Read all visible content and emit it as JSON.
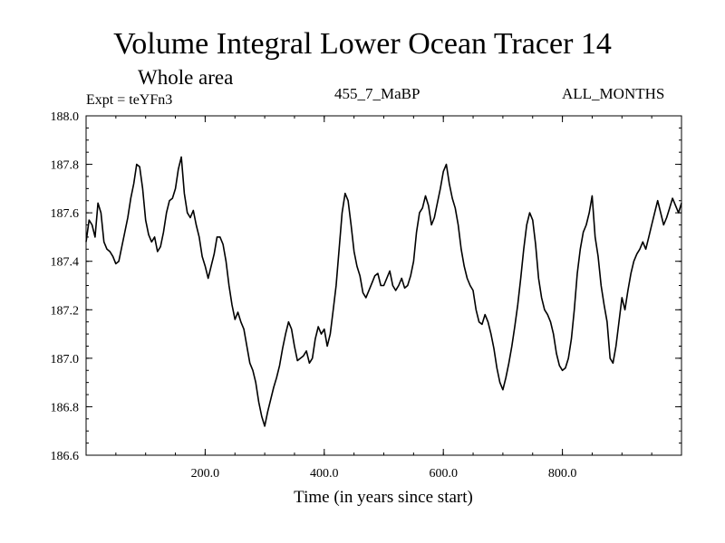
{
  "header": {
    "title": "Volume Integral Lower Ocean Tracer 14",
    "subtitle": "Whole area",
    "experiment": "Expt = teYFn3",
    "run": "455_7_MaBP",
    "months": "ALL_MONTHS"
  },
  "chart_data": {
    "type": "line",
    "title": "Volume Integral Lower Ocean Tracer 14",
    "xlabel": "Time (in years since start)",
    "ylabel": "",
    "xlim": [
      0,
      1000
    ],
    "ylim": [
      186.6,
      188.0
    ],
    "xticks": [
      200,
      400,
      600,
      800
    ],
    "xtick_labels": [
      "200.0",
      "400.0",
      "600.0",
      "800.0"
    ],
    "yticks": [
      186.6,
      186.8,
      187.0,
      187.2,
      187.4,
      187.6,
      187.8,
      188.0
    ],
    "ytick_labels": [
      "186.6",
      "186.8",
      "187.0",
      "187.2",
      "187.4",
      "187.6",
      "187.8",
      "188.0"
    ],
    "grid": false,
    "series": [
      {
        "name": "Volume Integral Lower Ocean Tracer 14",
        "x": [
          0,
          5,
          10,
          15,
          20,
          25,
          30,
          35,
          40,
          45,
          50,
          55,
          60,
          65,
          70,
          75,
          80,
          85,
          90,
          95,
          100,
          105,
          110,
          115,
          120,
          125,
          130,
          135,
          140,
          145,
          150,
          155,
          160,
          165,
          170,
          175,
          180,
          185,
          190,
          195,
          200,
          205,
          210,
          215,
          220,
          225,
          230,
          235,
          240,
          245,
          250,
          255,
          260,
          265,
          270,
          275,
          280,
          285,
          290,
          295,
          300,
          305,
          310,
          315,
          320,
          325,
          330,
          335,
          340,
          345,
          350,
          355,
          360,
          365,
          370,
          375,
          380,
          385,
          390,
          395,
          400,
          405,
          410,
          415,
          420,
          425,
          430,
          435,
          440,
          445,
          450,
          455,
          460,
          465,
          470,
          475,
          480,
          485,
          490,
          495,
          500,
          505,
          510,
          515,
          520,
          525,
          530,
          535,
          540,
          545,
          550,
          555,
          560,
          565,
          570,
          575,
          580,
          585,
          590,
          595,
          600,
          605,
          610,
          615,
          620,
          625,
          630,
          635,
          640,
          645,
          650,
          655,
          660,
          665,
          670,
          675,
          680,
          685,
          690,
          695,
          700,
          705,
          710,
          715,
          720,
          725,
          730,
          735,
          740,
          745,
          750,
          755,
          760,
          765,
          770,
          775,
          780,
          785,
          790,
          795,
          800,
          805,
          810,
          815,
          820,
          825,
          830,
          835,
          840,
          845,
          850,
          855,
          860,
          865,
          870,
          875,
          880,
          885,
          890,
          895,
          900,
          905,
          910,
          915,
          920,
          925,
          930,
          935,
          940,
          945,
          950,
          955,
          960,
          965,
          970,
          975,
          980,
          985,
          990,
          995,
          1000
        ],
        "y": [
          187.48,
          187.57,
          187.55,
          187.5,
          187.64,
          187.6,
          187.48,
          187.45,
          187.44,
          187.42,
          187.39,
          187.4,
          187.46,
          187.52,
          187.58,
          187.66,
          187.72,
          187.8,
          187.79,
          187.7,
          187.57,
          187.51,
          187.48,
          187.5,
          187.44,
          187.46,
          187.52,
          187.6,
          187.65,
          187.66,
          187.7,
          187.78,
          187.83,
          187.68,
          187.6,
          187.58,
          187.61,
          187.55,
          187.5,
          187.42,
          187.38,
          187.33,
          187.38,
          187.43,
          187.5,
          187.5,
          187.47,
          187.4,
          187.3,
          187.22,
          187.16,
          187.19,
          187.15,
          187.12,
          187.05,
          186.98,
          186.95,
          186.9,
          186.82,
          186.76,
          186.72,
          186.78,
          186.83,
          186.88,
          186.92,
          186.97,
          187.04,
          187.1,
          187.15,
          187.12,
          187.05,
          186.99,
          187.0,
          187.01,
          187.03,
          186.98,
          187.0,
          187.08,
          187.13,
          187.1,
          187.12,
          187.05,
          187.1,
          187.2,
          187.3,
          187.45,
          187.6,
          187.68,
          187.65,
          187.55,
          187.44,
          187.38,
          187.34,
          187.27,
          187.25,
          187.28,
          187.31,
          187.34,
          187.35,
          187.3,
          187.3,
          187.33,
          187.36,
          187.3,
          187.28,
          187.3,
          187.33,
          187.29,
          187.3,
          187.34,
          187.4,
          187.52,
          187.6,
          187.62,
          187.67,
          187.63,
          187.55,
          187.58,
          187.64,
          187.7,
          187.77,
          187.8,
          187.72,
          187.66,
          187.62,
          187.55,
          187.45,
          187.38,
          187.33,
          187.3,
          187.28,
          187.2,
          187.15,
          187.14,
          187.18,
          187.15,
          187.1,
          187.04,
          186.96,
          186.9,
          186.87,
          186.92,
          186.98,
          187.05,
          187.13,
          187.22,
          187.33,
          187.45,
          187.55,
          187.6,
          187.57,
          187.47,
          187.33,
          187.25,
          187.2,
          187.18,
          187.15,
          187.1,
          187.02,
          186.97,
          186.95,
          186.96,
          187.0,
          187.08,
          187.2,
          187.35,
          187.45,
          187.52,
          187.55,
          187.6,
          187.67,
          187.5,
          187.42,
          187.3,
          187.22,
          187.15,
          187.0,
          186.98,
          187.05,
          187.15,
          187.25,
          187.2,
          187.28,
          187.35,
          187.4,
          187.43,
          187.45,
          187.48,
          187.45,
          187.5,
          187.55,
          187.6,
          187.65,
          187.6,
          187.55,
          187.58,
          187.62,
          187.66,
          187.63,
          187.6,
          187.64
        ]
      }
    ]
  },
  "colors": {
    "line": "#000000",
    "axis": "#000000",
    "background": "#ffffff"
  }
}
